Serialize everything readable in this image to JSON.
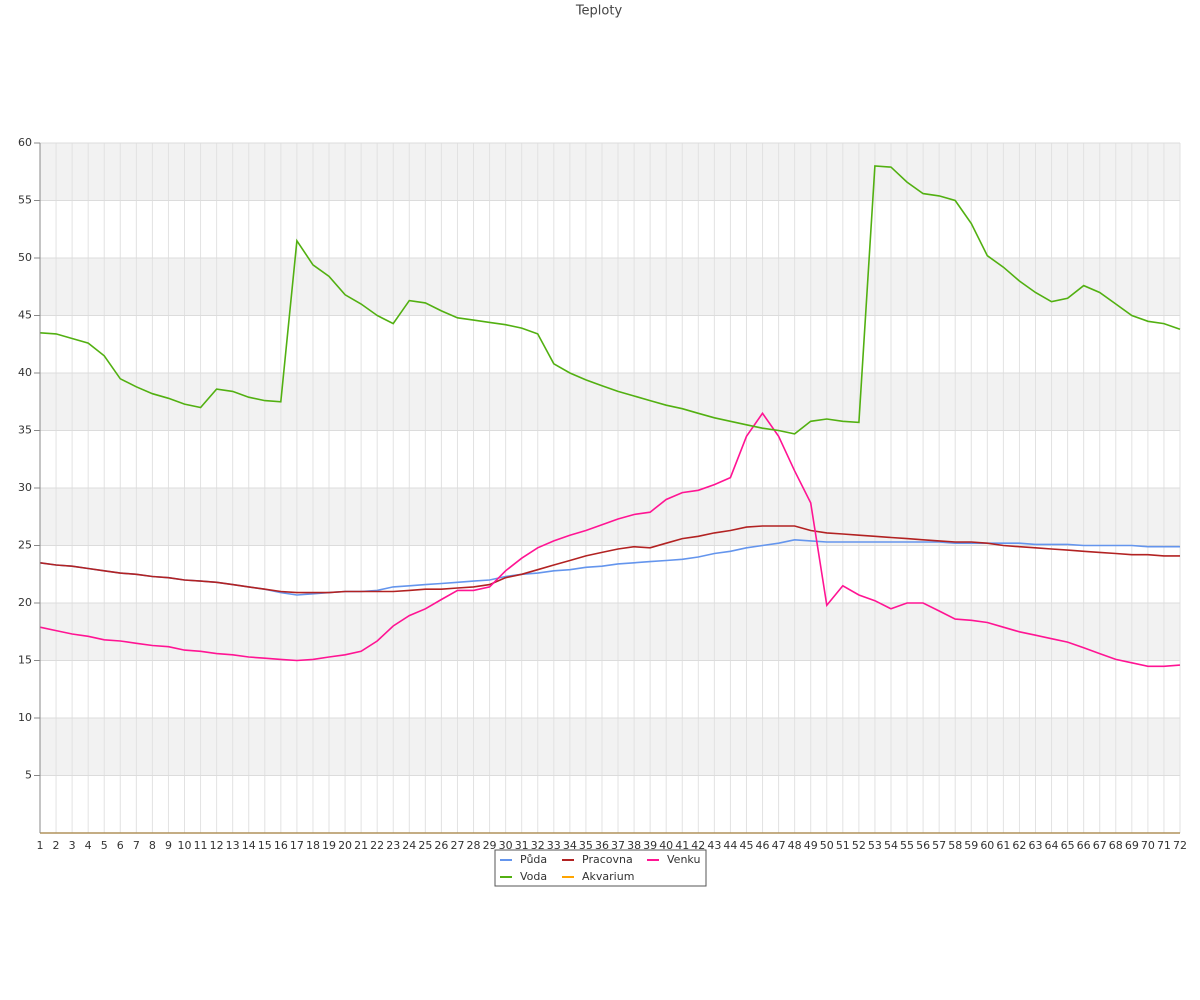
{
  "chart_data": {
    "type": "line",
    "title": "Teploty",
    "categories": [
      "1",
      "2",
      "3",
      "4",
      "5",
      "6",
      "7",
      "8",
      "9",
      "10",
      "11",
      "12",
      "13",
      "14",
      "15",
      "16",
      "17",
      "18",
      "19",
      "20",
      "21",
      "22",
      "23",
      "24",
      "25",
      "26",
      "27",
      "28",
      "29",
      "30",
      "31",
      "32",
      "33",
      "34",
      "35",
      "36",
      "37",
      "38",
      "39",
      "40",
      "41",
      "42",
      "43",
      "44",
      "45",
      "46",
      "47",
      "48",
      "49",
      "50",
      "51",
      "52",
      "53",
      "54",
      "55",
      "56",
      "57",
      "58",
      "59",
      "60",
      "61",
      "62",
      "63",
      "64",
      "65",
      "66",
      "67",
      "68",
      "69",
      "70",
      "71",
      "72"
    ],
    "ylim": [
      0,
      60
    ],
    "yticks": [
      5,
      10,
      15,
      20,
      25,
      30,
      35,
      40,
      45,
      50,
      55,
      60
    ],
    "grid": true,
    "series": [
      {
        "name": "Půda",
        "color": "#6495ed",
        "values": [
          23.5,
          23.3,
          23.2,
          23.0,
          22.8,
          22.6,
          22.5,
          22.3,
          22.2,
          22.0,
          21.9,
          21.8,
          21.6,
          21.4,
          21.2,
          20.9,
          20.7,
          20.8,
          20.9,
          21.0,
          21.0,
          21.1,
          21.4,
          21.5,
          21.6,
          21.7,
          21.8,
          21.9,
          22.0,
          22.3,
          22.5,
          22.6,
          22.8,
          22.9,
          23.1,
          23.2,
          23.4,
          23.5,
          23.6,
          23.7,
          23.8,
          24.0,
          24.3,
          24.5,
          24.8,
          25.0,
          25.2,
          25.5,
          25.4,
          25.3,
          25.3,
          25.3,
          25.3,
          25.3,
          25.3,
          25.3,
          25.3,
          25.2,
          25.2,
          25.2,
          25.2,
          25.2,
          25.1,
          25.1,
          25.1,
          25.0,
          25.0,
          25.0,
          25.0,
          24.9,
          24.9,
          24.9
        ]
      },
      {
        "name": "Pracovna",
        "color": "#b22222",
        "values": [
          23.5,
          23.3,
          23.2,
          23.0,
          22.8,
          22.6,
          22.5,
          22.3,
          22.2,
          22.0,
          21.9,
          21.8,
          21.6,
          21.4,
          21.2,
          21.0,
          20.9,
          20.9,
          20.9,
          21.0,
          21.0,
          21.0,
          21.0,
          21.1,
          21.2,
          21.2,
          21.3,
          21.4,
          21.6,
          22.2,
          22.5,
          22.9,
          23.3,
          23.7,
          24.1,
          24.4,
          24.7,
          24.9,
          24.8,
          25.2,
          25.6,
          25.8,
          26.1,
          26.3,
          26.6,
          26.7,
          26.7,
          26.7,
          26.3,
          26.1,
          26.0,
          25.9,
          25.8,
          25.7,
          25.6,
          25.5,
          25.4,
          25.3,
          25.3,
          25.2,
          25.0,
          24.9,
          24.8,
          24.7,
          24.6,
          24.5,
          24.4,
          24.3,
          24.2,
          24.2,
          24.1,
          24.1
        ]
      },
      {
        "name": "Venku",
        "color": "#ff1493",
        "values": [
          17.9,
          17.6,
          17.3,
          17.1,
          16.8,
          16.7,
          16.5,
          16.3,
          16.2,
          15.9,
          15.8,
          15.6,
          15.5,
          15.3,
          15.2,
          15.1,
          15.0,
          15.1,
          15.3,
          15.5,
          15.8,
          16.7,
          18.0,
          18.9,
          19.5,
          20.3,
          21.1,
          21.1,
          21.4,
          22.8,
          23.9,
          24.8,
          25.4,
          25.9,
          26.3,
          26.8,
          27.3,
          27.7,
          27.9,
          29.0,
          29.6,
          29.8,
          30.3,
          30.9,
          34.5,
          36.5,
          34.5,
          31.5,
          28.7,
          19.8,
          21.5,
          20.7,
          20.2,
          19.5,
          20.0,
          20.0,
          19.3,
          18.6,
          18.5,
          18.3,
          17.9,
          17.5,
          17.2,
          16.9,
          16.6,
          16.1,
          15.6,
          15.1,
          14.8,
          14.5,
          14.5,
          14.6
        ]
      },
      {
        "name": "Voda",
        "color": "#52b011",
        "values": [
          43.5,
          43.4,
          43.0,
          42.6,
          41.5,
          39.5,
          38.8,
          38.2,
          37.8,
          37.3,
          37.0,
          38.6,
          38.4,
          37.9,
          37.6,
          37.5,
          51.5,
          49.4,
          48.4,
          46.8,
          46.0,
          45.0,
          44.3,
          46.3,
          46.1,
          45.4,
          44.8,
          44.6,
          44.4,
          44.2,
          43.9,
          43.4,
          40.8,
          40.0,
          39.4,
          38.9,
          38.4,
          38.0,
          37.6,
          37.2,
          36.9,
          36.5,
          36.1,
          35.8,
          35.5,
          35.2,
          35.0,
          34.7,
          35.8,
          36.0,
          35.8,
          35.7,
          58.0,
          57.9,
          56.6,
          55.6,
          55.4,
          55.0,
          53.0,
          50.2,
          49.2,
          48.0,
          47.0,
          46.2,
          46.5,
          47.6,
          47.0,
          46.0,
          45.0,
          44.5,
          44.3,
          43.8
        ]
      },
      {
        "name": "Akvarium",
        "color": "#ffa500",
        "values": [
          0,
          0,
          0,
          0,
          0,
          0,
          0,
          0,
          0,
          0,
          0,
          0,
          0,
          0,
          0,
          0,
          0,
          0,
          0,
          0,
          0,
          0,
          0,
          0,
          0,
          0,
          0,
          0,
          0,
          0,
          0,
          0,
          0,
          0,
          0,
          0,
          0,
          0,
          0,
          0,
          0,
          0,
          0,
          0,
          0,
          0,
          0,
          0,
          0,
          0,
          0,
          0,
          0,
          0,
          0,
          0,
          0,
          0,
          0,
          0,
          0,
          0,
          0,
          0,
          0,
          0,
          0,
          0,
          0,
          0,
          0,
          0
        ]
      }
    ]
  }
}
